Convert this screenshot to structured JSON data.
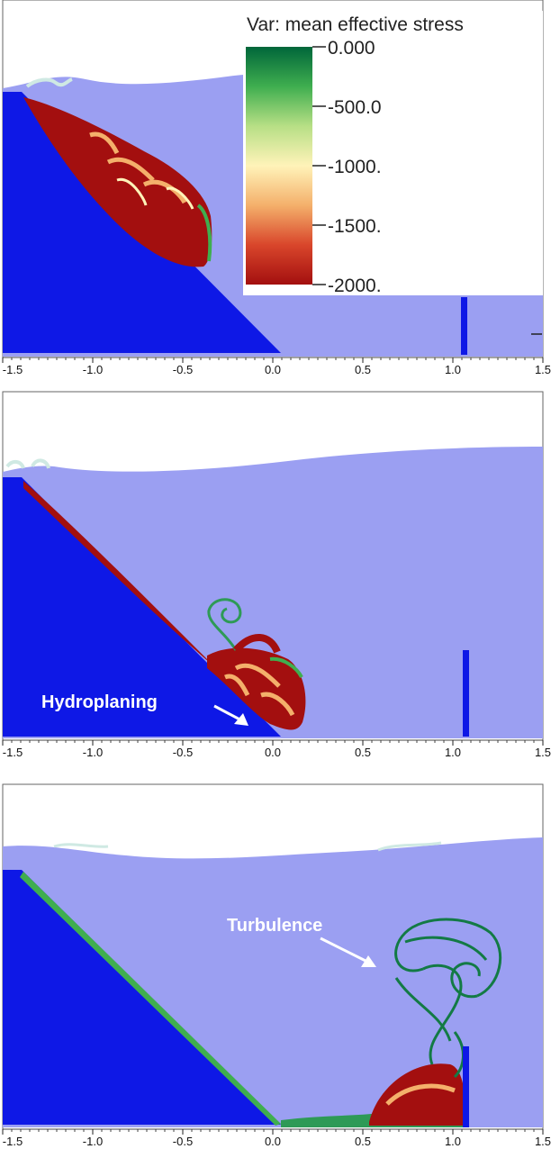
{
  "colors": {
    "water": "#9b9ff2",
    "slope": "#0e18e6",
    "air": "#ffffff",
    "stress_high": "#a30f0f",
    "stress_mid": "#fff2b0",
    "stress_low": "#006d3b",
    "wall": "#0e18e6"
  },
  "legend": {
    "title": "Var: mean effective stress",
    "ticks": [
      "0.000",
      "-500.0",
      "-1000.",
      "-1500.",
      "-2000."
    ],
    "colormap": [
      "#00663a",
      "#3fae4f",
      "#b7df85",
      "#fff3b9",
      "#f4b06b",
      "#d9462b",
      "#a30f0f"
    ]
  },
  "axis": {
    "ticks": [
      "-1.5",
      "-1.0",
      "-0.5",
      "0.0",
      "0.5",
      "1.0",
      "1.5"
    ],
    "range": [
      -1.5,
      1.5
    ]
  },
  "annotations": {
    "hydroplaning": "Hydroplaning",
    "turbulence": "Turbulence"
  }
}
